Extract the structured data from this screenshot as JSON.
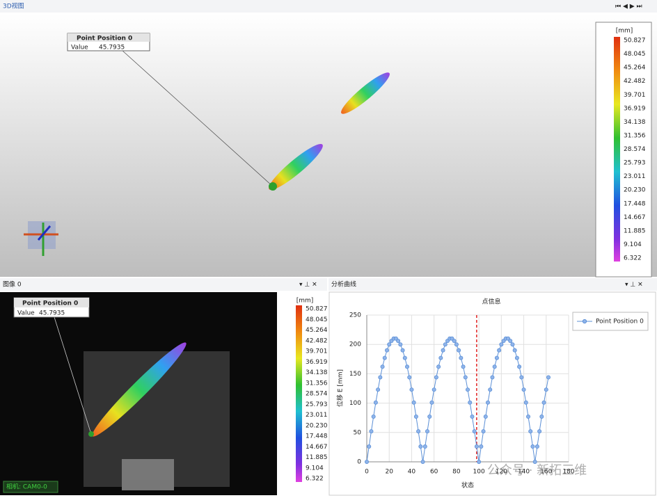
{
  "view3d": {
    "tab": "3D视图",
    "point_title": "Point Position 0",
    "point_key": "Value",
    "point_value": "45.7935"
  },
  "image_panel": {
    "title": "图像 0",
    "point_title": "Point Position 0",
    "point_key": "Value",
    "point_value": "45.7935",
    "camera": "相机: CAM0-0"
  },
  "colorbar": {
    "unit": "[mm]",
    "ticks": [
      "50.827",
      "48.045",
      "45.264",
      "42.482",
      "39.701",
      "36.919",
      "34.138",
      "31.356",
      "28.574",
      "25.793",
      "23.011",
      "20.230",
      "17.448",
      "14.667",
      "11.885",
      "9.104",
      "6.322"
    ]
  },
  "analysis_panel": {
    "title": "分析曲线"
  },
  "watermark": "公众号 · 新拓三维",
  "chart_data": {
    "type": "line",
    "title": "点信息",
    "x_label": "状态",
    "y_label": "位移 E [mm]",
    "x": [
      0,
      2,
      4,
      6,
      8,
      10,
      12,
      14,
      16,
      18,
      20,
      22,
      24,
      26,
      28,
      30,
      32,
      34,
      36,
      38,
      40,
      42,
      44,
      46,
      48,
      50,
      52,
      54,
      56,
      58,
      60,
      62,
      64,
      66,
      68,
      70,
      72,
      74,
      76,
      78,
      80,
      82,
      84,
      86,
      88,
      90,
      92,
      94,
      96,
      98,
      100,
      102,
      104,
      106,
      108,
      110,
      112,
      114,
      116,
      118,
      120,
      122,
      124,
      126,
      128,
      130,
      132,
      134,
      136,
      138,
      140,
      142,
      144,
      146,
      148,
      150,
      152,
      154,
      156,
      158,
      160,
      162
    ],
    "series": [
      {
        "name": "Point Position 0",
        "color": "#5b8fd6",
        "values": [
          0,
          26,
          52,
          77,
          101,
          123,
          144,
          162,
          177,
          190,
          200,
          206,
          210,
          210,
          206,
          200,
          190,
          177,
          162,
          144,
          123,
          101,
          77,
          52,
          26,
          0,
          26,
          52,
          77,
          101,
          123,
          144,
          162,
          177,
          190,
          200,
          206,
          210,
          210,
          206,
          200,
          190,
          177,
          162,
          144,
          123,
          101,
          77,
          52,
          26,
          0,
          26,
          52,
          77,
          101,
          123,
          144,
          162,
          177,
          190,
          200,
          206,
          210,
          210,
          206,
          200,
          190,
          177,
          162,
          144,
          123,
          101,
          77,
          52,
          26,
          0,
          26,
          52,
          77,
          101,
          123,
          144
        ]
      }
    ],
    "xlim": [
      0,
      180
    ],
    "xticks": [
      0,
      20,
      40,
      60,
      80,
      100,
      120,
      140,
      160,
      180
    ],
    "ylim": [
      0,
      250
    ],
    "yticks": [
      0,
      50,
      100,
      150,
      200,
      250
    ],
    "cursor_x": 98,
    "cursor_color": "#e02020",
    "grid": true,
    "legend": "right"
  }
}
